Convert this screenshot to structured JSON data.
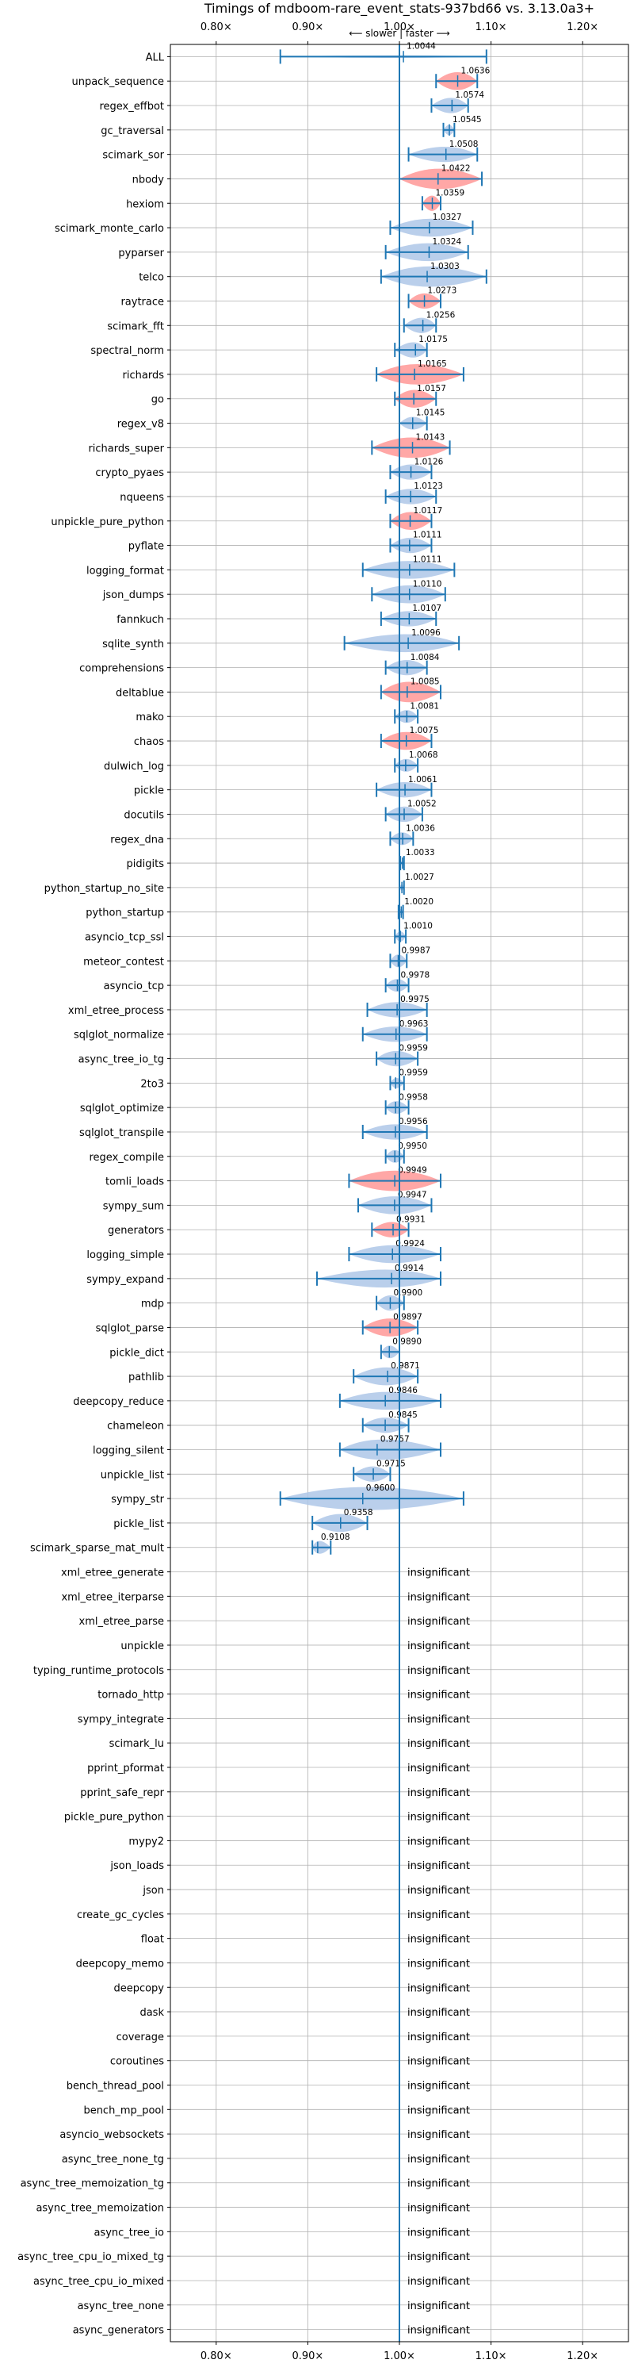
{
  "chart_data": {
    "type": "violin",
    "title": "Timings of mdboom-rare_event_stats-937bd66 vs. 3.13.0a3+",
    "direction_label": "⟵ slower | faster ⟶",
    "xlim": [
      0.75,
      1.25
    ],
    "x_ticks": [
      0.8,
      0.9,
      1.0,
      1.1,
      1.2
    ],
    "x_tick_labels": [
      "0.80×",
      "0.90×",
      "1.00×",
      "1.10×",
      "1.20×"
    ],
    "grid": true,
    "reference_line": 1.0,
    "colors": {
      "normal": "#1f77b4",
      "highlight": "#ff9896",
      "violin_fill": "#aec7e8"
    },
    "insignificant_label": "insignificant",
    "benchmarks": [
      {
        "name": "ALL",
        "value": 1.0044,
        "label": "1.0044",
        "min": 0.87,
        "max": 1.095,
        "width": 0.1,
        "highlight": false
      },
      {
        "name": "unpack_sequence",
        "value": 1.0636,
        "label": "1.0636",
        "min": 1.04,
        "max": 1.085,
        "width": 0.7,
        "highlight": true
      },
      {
        "name": "regex_effbot",
        "value": 1.0574,
        "label": "1.0574",
        "min": 1.035,
        "max": 1.075,
        "width": 0.6,
        "highlight": false
      },
      {
        "name": "gc_traversal",
        "value": 1.0545,
        "label": "1.0545",
        "min": 1.048,
        "max": 1.06,
        "width": 0.4,
        "highlight": false
      },
      {
        "name": "scimark_sor",
        "value": 1.0508,
        "label": "1.0508",
        "min": 1.01,
        "max": 1.085,
        "width": 0.6,
        "highlight": false
      },
      {
        "name": "nbody",
        "value": 1.0422,
        "label": "1.0422",
        "min": 1.0,
        "max": 1.09,
        "width": 0.8,
        "highlight": true
      },
      {
        "name": "hexiom",
        "value": 1.0359,
        "label": "1.0359",
        "min": 1.025,
        "max": 1.045,
        "width": 0.6,
        "highlight": true
      },
      {
        "name": "scimark_monte_carlo",
        "value": 1.0327,
        "label": "1.0327",
        "min": 0.99,
        "max": 1.08,
        "width": 0.7,
        "highlight": false
      },
      {
        "name": "pyparser",
        "value": 1.0324,
        "label": "1.0324",
        "min": 0.985,
        "max": 1.075,
        "width": 0.7,
        "highlight": false
      },
      {
        "name": "telco",
        "value": 1.0303,
        "label": "1.0303",
        "min": 0.98,
        "max": 1.095,
        "width": 0.8,
        "highlight": false
      },
      {
        "name": "raytrace",
        "value": 1.0273,
        "label": "1.0273",
        "min": 1.01,
        "max": 1.045,
        "width": 0.6,
        "highlight": true
      },
      {
        "name": "scimark_fft",
        "value": 1.0256,
        "label": "1.0256",
        "min": 1.005,
        "max": 1.04,
        "width": 0.6,
        "highlight": false
      },
      {
        "name": "spectral_norm",
        "value": 1.0175,
        "label": "1.0175",
        "min": 0.995,
        "max": 1.03,
        "width": 0.6,
        "highlight": false
      },
      {
        "name": "richards",
        "value": 1.0165,
        "label": "1.0165",
        "min": 0.975,
        "max": 1.07,
        "width": 0.8,
        "highlight": true
      },
      {
        "name": "go",
        "value": 1.0157,
        "label": "1.0157",
        "min": 0.995,
        "max": 1.04,
        "width": 0.7,
        "highlight": true
      },
      {
        "name": "regex_v8",
        "value": 1.0145,
        "label": "1.0145",
        "min": 1.0,
        "max": 1.03,
        "width": 0.5,
        "highlight": false
      },
      {
        "name": "richards_super",
        "value": 1.0143,
        "label": "1.0143",
        "min": 0.97,
        "max": 1.055,
        "width": 0.8,
        "highlight": true
      },
      {
        "name": "crypto_pyaes",
        "value": 1.0126,
        "label": "1.0126",
        "min": 0.99,
        "max": 1.035,
        "width": 0.6,
        "highlight": false
      },
      {
        "name": "nqueens",
        "value": 1.0123,
        "label": "1.0123",
        "min": 0.985,
        "max": 1.04,
        "width": 0.6,
        "highlight": false
      },
      {
        "name": "unpickle_pure_python",
        "value": 1.0117,
        "label": "1.0117",
        "min": 0.99,
        "max": 1.035,
        "width": 0.7,
        "highlight": true
      },
      {
        "name": "pyflate",
        "value": 1.0111,
        "label": "1.0111",
        "min": 0.99,
        "max": 1.035,
        "width": 0.6,
        "highlight": false
      },
      {
        "name": "logging_format",
        "value": 1.0111,
        "label": "1.0111",
        "min": 0.96,
        "max": 1.06,
        "width": 0.7,
        "highlight": false
      },
      {
        "name": "json_dumps",
        "value": 1.011,
        "label": "1.0110",
        "min": 0.97,
        "max": 1.05,
        "width": 0.7,
        "highlight": false
      },
      {
        "name": "fannkuch",
        "value": 1.0107,
        "label": "1.0107",
        "min": 0.98,
        "max": 1.04,
        "width": 0.6,
        "highlight": false
      },
      {
        "name": "sqlite_synth",
        "value": 1.0096,
        "label": "1.0096",
        "min": 0.94,
        "max": 1.065,
        "width": 0.7,
        "highlight": false
      },
      {
        "name": "comprehensions",
        "value": 1.0084,
        "label": "1.0084",
        "min": 0.985,
        "max": 1.03,
        "width": 0.6,
        "highlight": false
      },
      {
        "name": "deltablue",
        "value": 1.0085,
        "label": "1.0085",
        "min": 0.98,
        "max": 1.045,
        "width": 0.8,
        "highlight": true
      },
      {
        "name": "mako",
        "value": 1.0081,
        "label": "1.0081",
        "min": 0.995,
        "max": 1.02,
        "width": 0.5,
        "highlight": false
      },
      {
        "name": "chaos",
        "value": 1.0075,
        "label": "1.0075",
        "min": 0.98,
        "max": 1.035,
        "width": 0.7,
        "highlight": true
      },
      {
        "name": "dulwich_log",
        "value": 1.0068,
        "label": "1.0068",
        "min": 0.995,
        "max": 1.02,
        "width": 0.5,
        "highlight": false
      },
      {
        "name": "pickle",
        "value": 1.0061,
        "label": "1.0061",
        "min": 0.975,
        "max": 1.035,
        "width": 0.6,
        "highlight": false
      },
      {
        "name": "docutils",
        "value": 1.0052,
        "label": "1.0052",
        "min": 0.985,
        "max": 1.025,
        "width": 0.6,
        "highlight": false
      },
      {
        "name": "regex_dna",
        "value": 1.0036,
        "label": "1.0036",
        "min": 0.99,
        "max": 1.015,
        "width": 0.5,
        "highlight": false
      },
      {
        "name": "pidigits",
        "value": 1.0033,
        "label": "1.0033",
        "min": 1.001,
        "max": 1.005,
        "width": 0.2,
        "highlight": false
      },
      {
        "name": "python_startup_no_site",
        "value": 1.0027,
        "label": "1.0027",
        "min": 1.0,
        "max": 1.005,
        "width": 0.25,
        "highlight": false
      },
      {
        "name": "python_startup",
        "value": 1.002,
        "label": "1.0020",
        "min": 0.999,
        "max": 1.004,
        "width": 0.25,
        "highlight": false
      },
      {
        "name": "asyncio_tcp_ssl",
        "value": 1.001,
        "label": "1.0010",
        "min": 0.995,
        "max": 1.007,
        "width": 0.4,
        "highlight": false
      },
      {
        "name": "meteor_contest",
        "value": 0.9987,
        "label": "0.9987",
        "min": 0.99,
        "max": 1.008,
        "width": 0.5,
        "highlight": false
      },
      {
        "name": "asyncio_tcp",
        "value": 0.9978,
        "label": "0.9978",
        "min": 0.985,
        "max": 1.01,
        "width": 0.5,
        "highlight": false
      },
      {
        "name": "xml_etree_process",
        "value": 0.9975,
        "label": "0.9975",
        "min": 0.965,
        "max": 1.03,
        "width": 0.6,
        "highlight": false
      },
      {
        "name": "sqlglot_normalize",
        "value": 0.9963,
        "label": "0.9963",
        "min": 0.96,
        "max": 1.03,
        "width": 0.6,
        "highlight": false
      },
      {
        "name": "async_tree_io_tg",
        "value": 0.9959,
        "label": "0.9959",
        "min": 0.975,
        "max": 1.02,
        "width": 0.6,
        "highlight": false
      },
      {
        "name": "2to3",
        "value": 0.9959,
        "label": "0.9959",
        "min": 0.99,
        "max": 1.005,
        "width": 0.4,
        "highlight": false
      },
      {
        "name": "sqlglot_optimize",
        "value": 0.9958,
        "label": "0.9958",
        "min": 0.985,
        "max": 1.01,
        "width": 0.5,
        "highlight": false
      },
      {
        "name": "sqlglot_transpile",
        "value": 0.9956,
        "label": "0.9956",
        "min": 0.96,
        "max": 1.03,
        "width": 0.6,
        "highlight": false
      },
      {
        "name": "regex_compile",
        "value": 0.995,
        "label": "0.9950",
        "min": 0.985,
        "max": 1.005,
        "width": 0.5,
        "highlight": false
      },
      {
        "name": "tomli_loads",
        "value": 0.9949,
        "label": "0.9949",
        "min": 0.945,
        "max": 1.045,
        "width": 0.8,
        "highlight": true
      },
      {
        "name": "sympy_sum",
        "value": 0.9947,
        "label": "0.9947",
        "min": 0.955,
        "max": 1.035,
        "width": 0.7,
        "highlight": false
      },
      {
        "name": "generators",
        "value": 0.9931,
        "label": "0.9931",
        "min": 0.97,
        "max": 1.01,
        "width": 0.6,
        "highlight": true
      },
      {
        "name": "logging_simple",
        "value": 0.9924,
        "label": "0.9924",
        "min": 0.945,
        "max": 1.045,
        "width": 0.7,
        "highlight": false
      },
      {
        "name": "sympy_expand",
        "value": 0.9914,
        "label": "0.9914",
        "min": 0.91,
        "max": 1.045,
        "width": 0.7,
        "highlight": false
      },
      {
        "name": "mdp",
        "value": 0.99,
        "label": "0.9900",
        "min": 0.975,
        "max": 1.005,
        "width": 0.6,
        "highlight": false
      },
      {
        "name": "sqlglot_parse",
        "value": 0.9897,
        "label": "0.9897",
        "min": 0.96,
        "max": 1.02,
        "width": 0.7,
        "highlight": true
      },
      {
        "name": "pickle_dict",
        "value": 0.989,
        "label": "0.9890",
        "min": 0.98,
        "max": 1.0,
        "width": 0.5,
        "highlight": false
      },
      {
        "name": "pathlib",
        "value": 0.9871,
        "label": "0.9871",
        "min": 0.95,
        "max": 1.02,
        "width": 0.7,
        "highlight": false
      },
      {
        "name": "deepcopy_reduce",
        "value": 0.9846,
        "label": "0.9846",
        "min": 0.935,
        "max": 1.045,
        "width": 0.7,
        "highlight": false
      },
      {
        "name": "chameleon",
        "value": 0.9845,
        "label": "0.9845",
        "min": 0.96,
        "max": 1.01,
        "width": 0.6,
        "highlight": false
      },
      {
        "name": "logging_silent",
        "value": 0.9757,
        "label": "0.9757",
        "min": 0.935,
        "max": 1.045,
        "width": 0.8,
        "highlight": false
      },
      {
        "name": "unpickle_list",
        "value": 0.9715,
        "label": "0.9715",
        "min": 0.95,
        "max": 0.99,
        "width": 0.6,
        "highlight": false
      },
      {
        "name": "sympy_str",
        "value": 0.96,
        "label": "0.9600",
        "min": 0.87,
        "max": 1.07,
        "width": 0.9,
        "highlight": false
      },
      {
        "name": "pickle_list",
        "value": 0.9358,
        "label": "0.9358",
        "min": 0.905,
        "max": 0.965,
        "width": 0.7,
        "highlight": false
      },
      {
        "name": "scimark_sparse_mat_mult",
        "value": 0.9108,
        "label": "0.9108",
        "min": 0.905,
        "max": 0.925,
        "width": 0.5,
        "highlight": false
      },
      {
        "name": "xml_etree_generate",
        "insignificant": true
      },
      {
        "name": "xml_etree_iterparse",
        "insignificant": true
      },
      {
        "name": "xml_etree_parse",
        "insignificant": true
      },
      {
        "name": "unpickle",
        "insignificant": true
      },
      {
        "name": "typing_runtime_protocols",
        "insignificant": true
      },
      {
        "name": "tornado_http",
        "insignificant": true
      },
      {
        "name": "sympy_integrate",
        "insignificant": true
      },
      {
        "name": "scimark_lu",
        "insignificant": true
      },
      {
        "name": "pprint_pformat",
        "insignificant": true
      },
      {
        "name": "pprint_safe_repr",
        "insignificant": true
      },
      {
        "name": "pickle_pure_python",
        "insignificant": true
      },
      {
        "name": "mypy2",
        "insignificant": true
      },
      {
        "name": "json_loads",
        "insignificant": true
      },
      {
        "name": "json",
        "insignificant": true
      },
      {
        "name": "create_gc_cycles",
        "insignificant": true
      },
      {
        "name": "float",
        "insignificant": true
      },
      {
        "name": "deepcopy_memo",
        "insignificant": true
      },
      {
        "name": "deepcopy",
        "insignificant": true
      },
      {
        "name": "dask",
        "insignificant": true
      },
      {
        "name": "coverage",
        "insignificant": true
      },
      {
        "name": "coroutines",
        "insignificant": true
      },
      {
        "name": "bench_thread_pool",
        "insignificant": true
      },
      {
        "name": "bench_mp_pool",
        "insignificant": true
      },
      {
        "name": "asyncio_websockets",
        "insignificant": true
      },
      {
        "name": "async_tree_none_tg",
        "insignificant": true
      },
      {
        "name": "async_tree_memoization_tg",
        "insignificant": true
      },
      {
        "name": "async_tree_memoization",
        "insignificant": true
      },
      {
        "name": "async_tree_io",
        "insignificant": true
      },
      {
        "name": "async_tree_cpu_io_mixed_tg",
        "insignificant": true
      },
      {
        "name": "async_tree_cpu_io_mixed",
        "insignificant": true
      },
      {
        "name": "async_tree_none",
        "insignificant": true
      },
      {
        "name": "async_generators",
        "insignificant": true
      }
    ]
  }
}
